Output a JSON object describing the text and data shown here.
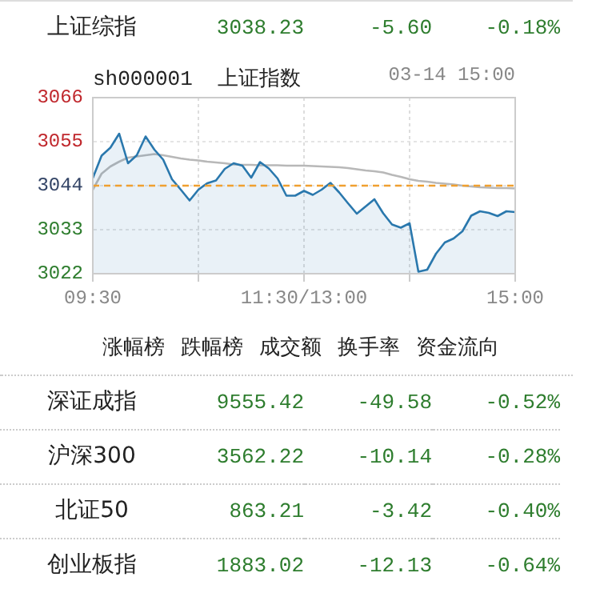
{
  "chart_data": [
    {
      "type": "other",
      "annotations": [
        "上证综指",
        "3038.23",
        "-5.60",
        "-0.18%"
      ]
    },
    {
      "type": "line",
      "title": "sh000001  上证指数",
      "subtitle": "03-14 15:00",
      "categories": [
        "09:30",
        null,
        null,
        null,
        null,
        null,
        null,
        null,
        null,
        null,
        null,
        null,
        null,
        null,
        null,
        null,
        null,
        null,
        null,
        null,
        null,
        null,
        null,
        null,
        "11:30/13:00",
        null,
        null,
        null,
        null,
        null,
        null,
        null,
        null,
        null,
        null,
        null,
        null,
        null,
        null,
        null,
        null,
        null,
        null,
        null,
        null,
        null,
        null,
        null,
        "15:00"
      ],
      "ylim": [
        3022,
        3066
      ],
      "yticks": [
        3022,
        3033,
        3044,
        3055,
        3066
      ],
      "grid": true,
      "legend": false,
      "marker": "none",
      "ref_lines": [
        {
          "axis": "y",
          "value": 3044,
          "color": "#f0a030",
          "line_style": "dashed"
        }
      ],
      "series": [
        {
          "type": "area",
          "color": "#2a78ad",
          "values": [
            3045.9,
            3051.5,
            3053.5,
            3057.0,
            3049.6,
            3051.6,
            3056.3,
            3053.0,
            3050.5,
            3045.6,
            3043.0,
            3040.3,
            3043.0,
            3044.6,
            3045.3,
            3048.2,
            3049.6,
            3049.0,
            3046.0,
            3049.9,
            3048.3,
            3045.8,
            3041.5,
            3041.5,
            3042.7,
            3041.7,
            3043.0,
            3044.7,
            3042.3,
            3039.6,
            3037.0,
            3038.8,
            3040.6,
            3037.1,
            3034.3,
            3033.5,
            3034.6,
            3022.5,
            3023.0,
            3027.0,
            3029.8,
            3030.8,
            3032.6,
            3036.5,
            3037.6,
            3037.2,
            3036.4,
            3037.6,
            3037.4
          ]
        },
        {
          "type": "line",
          "color": "#b8b8b8",
          "values": [
            3043.0,
            3047.0,
            3048.8,
            3050.0,
            3051.0,
            3051.3,
            3051.6,
            3051.9,
            3051.6,
            3051.2,
            3050.8,
            3050.5,
            3050.3,
            3050.0,
            3049.8,
            3049.6,
            3049.3,
            3049.2,
            3049.2,
            3049.1,
            3049.1,
            3049.1,
            3049.0,
            3049.0,
            3049.0,
            3048.9,
            3048.8,
            3048.7,
            3048.6,
            3048.4,
            3048.1,
            3047.8,
            3047.6,
            3047.3,
            3046.7,
            3046.2,
            3045.6,
            3045.2,
            3045.0,
            3044.7,
            3044.5,
            3044.3,
            3044.0,
            3043.8,
            3043.6,
            3043.5,
            3043.4,
            3043.4,
            3043.3
          ]
        }
      ]
    },
    {
      "type": "other",
      "annotations": [
        "涨幅榜",
        "跌幅榜",
        "成交额",
        "换手率",
        "资金流向"
      ]
    },
    {
      "type": "other",
      "annotations": [
        "深证成指",
        "9555.42",
        "-49.58",
        "-0.52%",
        "沪深300",
        "3562.22",
        "-10.14",
        "-0.28%",
        "北证50",
        "863.21",
        "-3.42",
        "-0.40%",
        "创业板指",
        "1883.02",
        "-12.13",
        "-0.64%"
      ]
    }
  ]
}
